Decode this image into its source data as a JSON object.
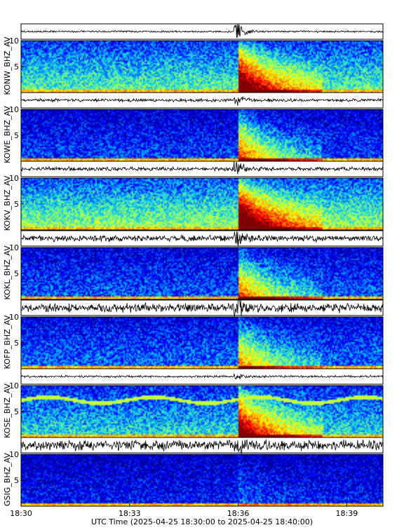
{
  "chart_data": {
    "type": "heatmap",
    "description_type": "seismogram-spectrogram",
    "xlabel": "UTC Time (2025-04-25 18:30:00 to 2025-04-25 18:40:00)",
    "x_ticks": [
      "18:30",
      "18:33",
      "18:36",
      "18:39"
    ],
    "x_tick_minutes": [
      0,
      3,
      6,
      9
    ],
    "x_range_minutes": [
      0,
      10
    ],
    "y_ticks": [
      5,
      10
    ],
    "y_range": [
      0,
      10
    ],
    "event_minute": 6.0,
    "colormap": [
      "#00008f",
      "#0000ff",
      "#00bfff",
      "#7fff7f",
      "#ffff00",
      "#ff7f00",
      "#ff0000",
      "#7f0000"
    ],
    "stations": [
      {
        "label": "KONW_BHZ_AV",
        "event_strength": 0.85,
        "bg_level": 0.35,
        "wave_noise": 0.1,
        "wave_peak": 1.0
      },
      {
        "label": "KOWE_BHZ_AV",
        "event_strength": 0.65,
        "bg_level": 0.16,
        "wave_noise": 0.18,
        "wave_peak": 0.6
      },
      {
        "label": "KOKV_BHZ_AV",
        "event_strength": 0.95,
        "bg_level": 0.4,
        "wave_noise": 0.22,
        "wave_peak": 1.0
      },
      {
        "label": "KOKL_BHZ_AV",
        "event_strength": 0.6,
        "bg_level": 0.18,
        "wave_noise": 0.35,
        "wave_peak": 0.9
      },
      {
        "label": "KOFP_BHZ_AV",
        "event_strength": 0.5,
        "bg_level": 0.2,
        "wave_noise": 0.5,
        "wave_peak": 0.8
      },
      {
        "label": "KOSE_BHZ_AV",
        "event_strength": 0.8,
        "bg_level": 0.3,
        "wave_noise": 0.12,
        "wave_peak": 0.3
      },
      {
        "label": "GSIG_BHZ_AV",
        "event_strength": 0.1,
        "bg_level": 0.12,
        "wave_noise": 0.6,
        "wave_peak": 0.6
      }
    ]
  }
}
